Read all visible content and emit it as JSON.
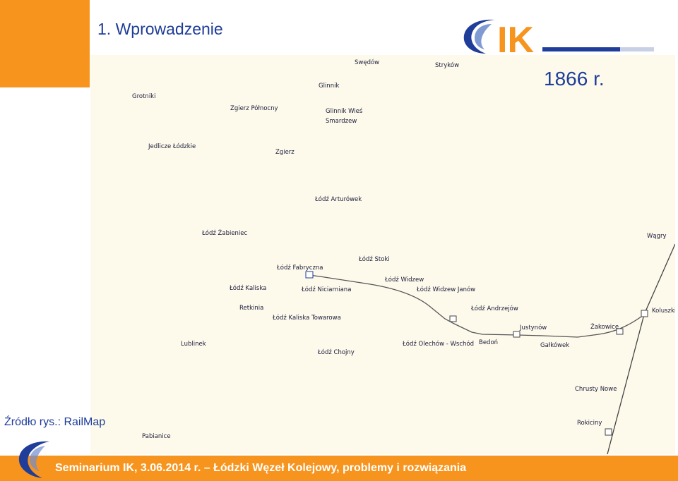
{
  "header": {
    "title": "1. Wprowadzenie",
    "logo_text": "IK"
  },
  "map": {
    "year": "1866 r.",
    "stations": {
      "swedow": "Swędów",
      "strykow": "Stryków",
      "glinnik": "Glinnik",
      "grotniki": "Grotniki",
      "zgierz_polnocny": "Zgierz Północny",
      "glinnik_wies": "Glinnik Wieś",
      "smardzew": "Smardzew",
      "jedlicze": "Jedlicze Łódzkie",
      "zgierz": "Zgierz",
      "lodz_arturowek": "Łódź Arturówek",
      "lodz_zabieniec": "Łódź Żabieniec",
      "wagry": "Wągry",
      "lodz_stoki": "Łódź Stoki",
      "lodz_fabryczna": "Łódź Fabryczna",
      "lodz_widzew": "Łódź Widzew",
      "lodz_kaliska": "Łódź Kaliska",
      "lodz_niciarniana": "Łódź Niciarniana",
      "lodz_widzew_janow": "Łódź Widzew Janów",
      "retkinia": "Retkinia",
      "lodz_andrzejow": "Łódź Andrzejów",
      "koluszki": "Koluszki",
      "lodz_kaliska_towarowa": "Łódź Kaliska Towarowa",
      "justynow": "Justynów",
      "zakowice": "Żakowice",
      "lublinek": "Lublinek",
      "lodz_olechow": "Łódź Olechów - Wschód",
      "bedon": "Bedoń",
      "galkowek": "Gałkówek",
      "lodz_chojny": "Łódź Chojny",
      "chrusty_nowe": "Chrusty Nowe",
      "rokiciny": "Rokiciny",
      "pabianice": "Pabianice"
    }
  },
  "source": "Źródło rys.: RailMap",
  "footer": {
    "text": "Seminarium IK, 3.06.2014 r. – Łódzki Węzeł Kolejowy, problemy i rozwiązania"
  },
  "colors": {
    "accent": "#f7941d",
    "brand_blue": "#1f3d99",
    "map_bg": "#fdfaeb"
  }
}
